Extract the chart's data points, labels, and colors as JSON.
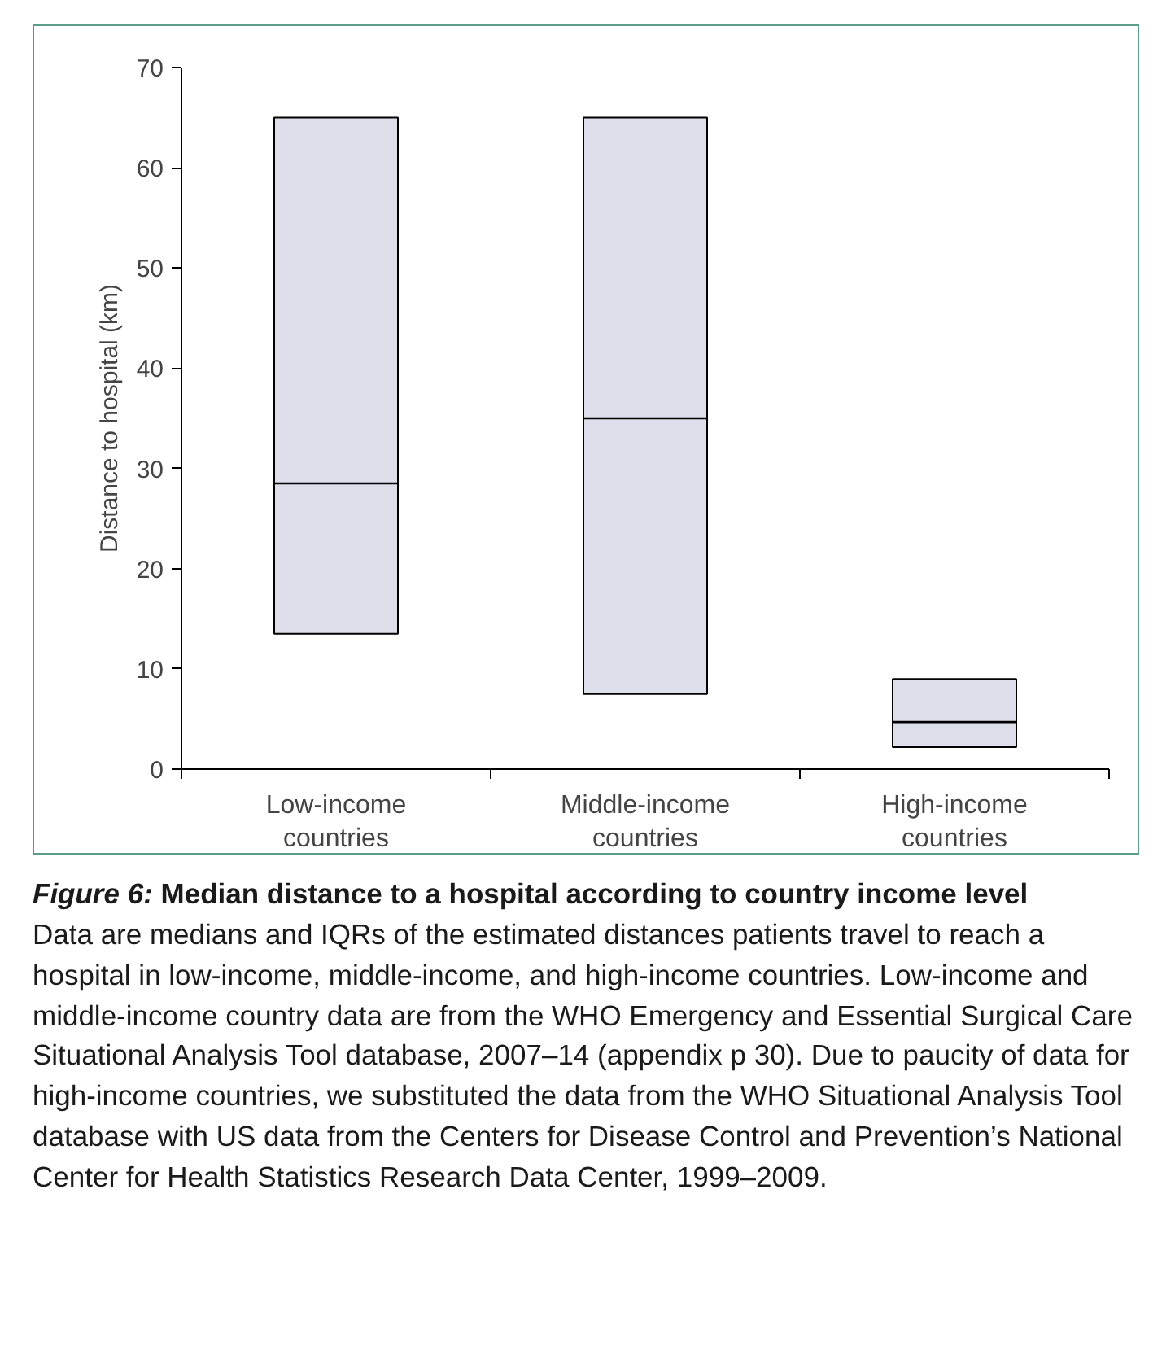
{
  "chart_data": {
    "type": "box",
    "title": "Figure 6: Median distance to a hospital according to country income level",
    "ylabel": "Distance to hospital (km)",
    "categories": [
      "Low-income countries",
      "Middle-income countries",
      "High-income countries"
    ],
    "boxes": [
      {
        "low": 13.5,
        "q1": 13.5,
        "median": 28.5,
        "q3": 65,
        "high": 65
      },
      {
        "low": 7.5,
        "q1": 7.5,
        "median": 35,
        "q3": 65,
        "high": 65
      },
      {
        "low": 2.2,
        "q1": 2.2,
        "median": 4.7,
        "q3": 9,
        "high": 9
      }
    ],
    "color": "#dde0ea",
    "ylim": [
      0,
      70
    ],
    "yticks": [
      0,
      10,
      20,
      30,
      40,
      50,
      60,
      70
    ],
    "grid": false,
    "annotations": [
      "Data are medians and IQRs of the estimated distances patients travel to reach a hospital in low-income, middle-income, and high-income countries. Low-income and middle-income country data are from the WHO Emergency and Essential Surgical Care Situational Analysis Tool database, 2007–14 (appendix p 30). Due to paucity of data for high-income countries, we substituted the data from the WHO Situational Analysis Tool database with US data from the Centers for Disease Control and Prevention’s National Center for Health Statistics Research Data Center, 1999–2009."
    ]
  }
}
